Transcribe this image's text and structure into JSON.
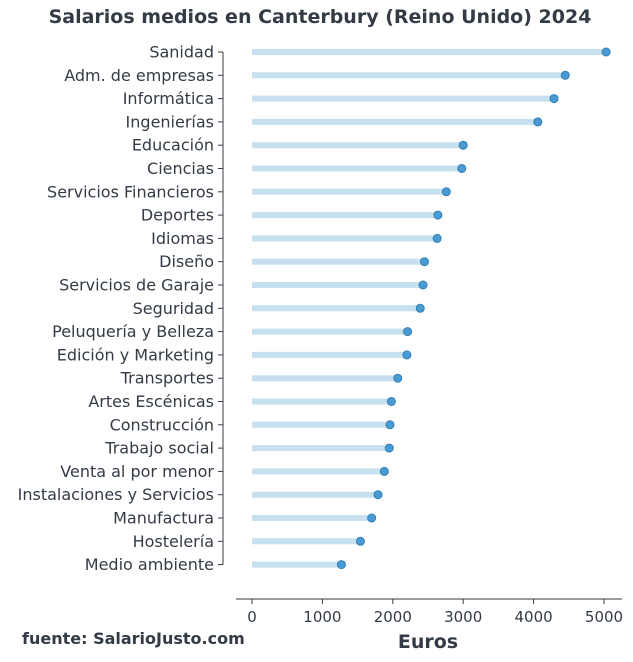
{
  "chart_data": {
    "type": "lollipop",
    "title": "Salarios medios en Canterbury (Reino Unido) 2024",
    "xlabel": "Euros",
    "ylabel": "",
    "xlim": [
      0,
      5300
    ],
    "xticks": [
      0,
      1000,
      2000,
      3000,
      4000,
      5000
    ],
    "categories": [
      "Sanidad",
      "Adm. de empresas",
      "Informática",
      "Ingenierías",
      "Educación",
      "Ciencias",
      "Servicios Financieros",
      "Deportes",
      "Idiomas",
      "Diseño",
      "Servicios de Garaje",
      "Seguridad",
      "Peluquería y Belleza",
      "Edición y Marketing",
      "Transportes",
      "Artes Escénicas",
      "Construcción",
      "Trabajo social",
      "Venta al por menor",
      "Instalaciones y Servicios",
      "Manufactura",
      "Hostelería",
      "Medio ambiente"
    ],
    "values": [
      5030,
      4450,
      4290,
      4060,
      3000,
      2980,
      2760,
      2640,
      2630,
      2450,
      2430,
      2390,
      2210,
      2200,
      2070,
      1980,
      1960,
      1950,
      1880,
      1790,
      1700,
      1540,
      1270
    ],
    "colors": {
      "stem": "#c6e0f0",
      "dot": "#4a9bd1",
      "dot_edge": "#2f7fb8",
      "text": "#333b46",
      "axis": "#333b46"
    },
    "grid": false
  },
  "source": "fuente: SalarioJusto.com"
}
